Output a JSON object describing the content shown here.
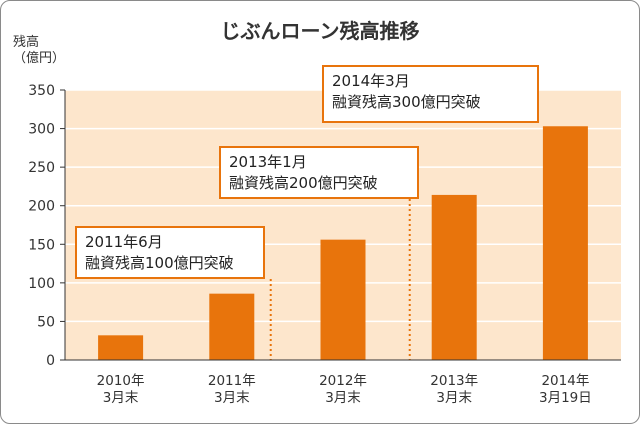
{
  "chart_data": {
    "type": "bar",
    "title": "じぶんローン残高推移",
    "ylabel_line1": "残高",
    "ylabel_line2": "（億円）",
    "xlabel": "",
    "ylim": [
      0,
      350
    ],
    "yticks": [
      0,
      50,
      100,
      150,
      200,
      250,
      300,
      350
    ],
    "categories": [
      [
        "2010年",
        "3月末"
      ],
      [
        "2011年",
        "3月末"
      ],
      [
        "2012年",
        "3月末"
      ],
      [
        "2013年",
        "3月末"
      ],
      [
        "2014年",
        "3月19日"
      ]
    ],
    "values": [
      32,
      86,
      156,
      214,
      303
    ],
    "colors": {
      "bar": "#e8740c",
      "plot_bg": "#fde6cc",
      "grid": "#ffffff",
      "axis": "#333333",
      "marker": "#e8740c"
    },
    "annotations": [
      {
        "line1": "2011年6月",
        "line2": "融資残高100億円突破"
      },
      {
        "line1": "2013年1月",
        "line2": "融資残高200億円突破"
      },
      {
        "line1": "2014年3月",
        "line2": "融資残高300億円突破"
      }
    ]
  }
}
